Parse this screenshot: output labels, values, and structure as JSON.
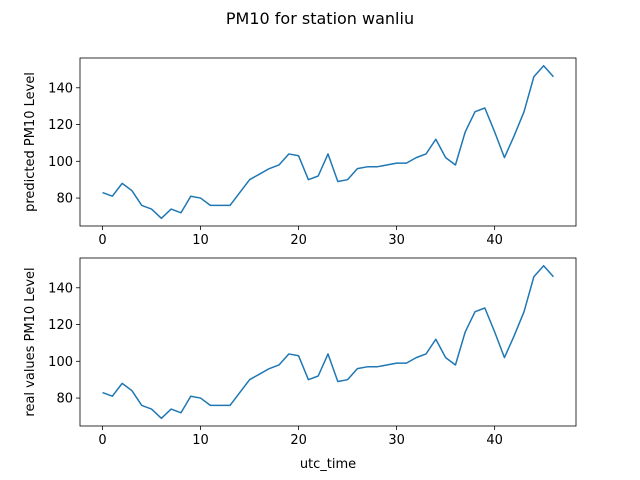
{
  "figure": {
    "title": "PM10 for station wanliu",
    "line_color": "#1f77b4"
  },
  "chart_data": [
    {
      "type": "line",
      "ylabel": "predicted PM10 Level",
      "xlabel": "",
      "xlim": [
        -2.3,
        48.3
      ],
      "ylim": [
        64.8,
        156.2
      ],
      "xticks": [
        0,
        10,
        20,
        30,
        40
      ],
      "yticks": [
        80,
        100,
        120,
        140
      ],
      "grid": false,
      "series": [
        {
          "x": [
            0,
            1,
            2,
            3,
            4,
            5,
            6,
            7,
            8,
            9,
            10,
            11,
            12,
            13,
            14,
            15,
            16,
            17,
            18,
            19,
            20,
            21,
            22,
            23,
            24,
            25,
            26,
            27,
            28,
            29,
            30,
            31,
            32,
            33,
            34,
            35,
            36,
            37,
            38,
            39,
            40,
            41,
            42,
            43,
            44,
            45,
            46
          ],
          "values": [
            83,
            81,
            88,
            84,
            76,
            74,
            69,
            74,
            72,
            81,
            80,
            76,
            76,
            76,
            83,
            90,
            93,
            96,
            98,
            104,
            103,
            90,
            92,
            104,
            89,
            90,
            96,
            97,
            97,
            98,
            99,
            99,
            102,
            104,
            112,
            102,
            98,
            116,
            127,
            129,
            116,
            102,
            114,
            127,
            146,
            152,
            146
          ]
        }
      ]
    },
    {
      "type": "line",
      "ylabel": "real values PM10 Level",
      "xlabel": "utc_time",
      "xlim": [
        -2.3,
        48.3
      ],
      "ylim": [
        64.8,
        156.2
      ],
      "xticks": [
        0,
        10,
        20,
        30,
        40
      ],
      "yticks": [
        80,
        100,
        120,
        140
      ],
      "grid": false,
      "series": [
        {
          "x": [
            0,
            1,
            2,
            3,
            4,
            5,
            6,
            7,
            8,
            9,
            10,
            11,
            12,
            13,
            14,
            15,
            16,
            17,
            18,
            19,
            20,
            21,
            22,
            23,
            24,
            25,
            26,
            27,
            28,
            29,
            30,
            31,
            32,
            33,
            34,
            35,
            36,
            37,
            38,
            39,
            40,
            41,
            42,
            43,
            44,
            45,
            46
          ],
          "values": [
            83,
            81,
            88,
            84,
            76,
            74,
            69,
            74,
            72,
            81,
            80,
            76,
            76,
            76,
            83,
            90,
            93,
            96,
            98,
            104,
            103,
            90,
            92,
            104,
            89,
            90,
            96,
            97,
            97,
            98,
            99,
            99,
            102,
            104,
            112,
            102,
            98,
            116,
            127,
            129,
            116,
            102,
            114,
            127,
            146,
            152,
            146
          ]
        }
      ]
    }
  ]
}
